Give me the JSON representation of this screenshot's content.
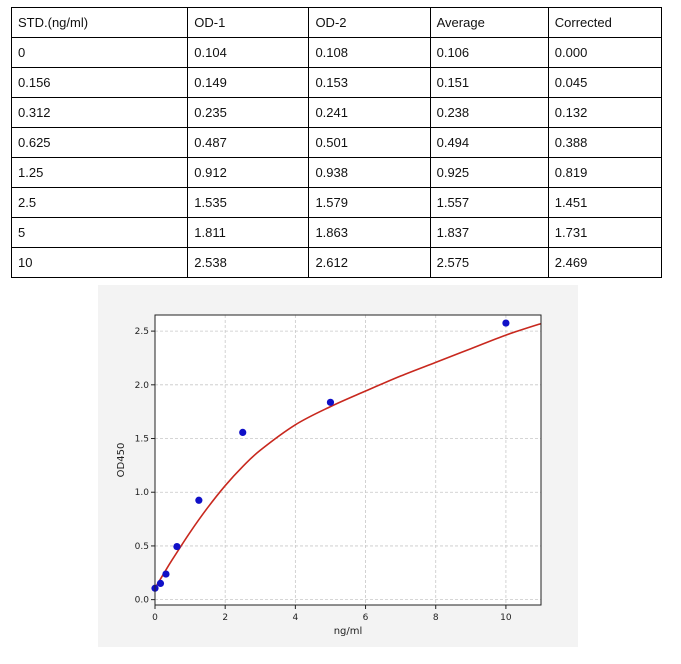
{
  "table": {
    "headers": [
      "STD.(ng/ml)",
      "OD-1",
      "OD-2",
      "Average",
      "Corrected"
    ],
    "rows": [
      [
        "0",
        "0.104",
        "0.108",
        "0.106",
        "0.000"
      ],
      [
        "0.156",
        "0.149",
        "0.153",
        "0.151",
        "0.045"
      ],
      [
        "0.312",
        "0.235",
        "0.241",
        "0.238",
        "0.132"
      ],
      [
        "0.625",
        "0.487",
        "0.501",
        "0.494",
        "0.388"
      ],
      [
        "1.25",
        "0.912",
        "0.938",
        "0.925",
        "0.819"
      ],
      [
        "2.5",
        "1.535",
        "1.579",
        "1.557",
        "1.451"
      ],
      [
        "5",
        "1.811",
        "1.863",
        "1.837",
        "1.731"
      ],
      [
        "10",
        "2.538",
        "2.612",
        "2.575",
        "2.469"
      ]
    ]
  },
  "chart_data": {
    "type": "scatter",
    "xlabel": "ng/ml",
    "ylabel": "OD450",
    "xlim": [
      0,
      11
    ],
    "ylim": [
      -0.05,
      2.65
    ],
    "xticks": [
      0,
      2,
      4,
      6,
      8,
      10
    ],
    "yticks": [
      0.0,
      0.5,
      1.0,
      1.5,
      2.0,
      2.5
    ],
    "xtick_labels": [
      "0",
      "2",
      "4",
      "6",
      "8",
      "10"
    ],
    "ytick_labels": [
      "0.0",
      "0.5",
      "1.0",
      "1.5",
      "2.0",
      "2.5"
    ],
    "grid": true,
    "series": [
      {
        "type": "scatter",
        "color": "#1010c8",
        "x": [
          0,
          0.156,
          0.312,
          0.625,
          1.25,
          2.5,
          5,
          10
        ],
        "y": [
          0.106,
          0.151,
          0.238,
          0.494,
          0.925,
          1.557,
          1.837,
          2.575
        ]
      },
      {
        "type": "line",
        "color": "#c8281e",
        "x": [
          0,
          0.25,
          0.5,
          1,
          1.5,
          2,
          2.5,
          3,
          4,
          5,
          6,
          7,
          8,
          9,
          10,
          11
        ],
        "y": [
          0.106,
          0.243,
          0.376,
          0.627,
          0.856,
          1.061,
          1.239,
          1.391,
          1.628,
          1.797,
          1.942,
          2.082,
          2.209,
          2.336,
          2.463,
          2.57
        ]
      }
    ]
  }
}
